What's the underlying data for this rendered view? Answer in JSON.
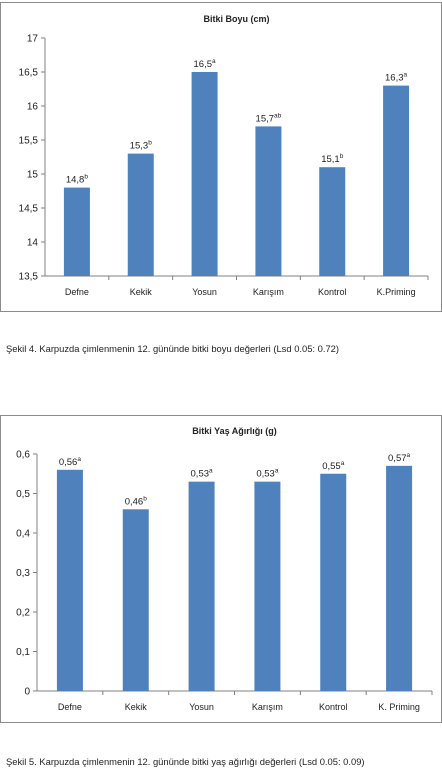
{
  "charts": [
    {
      "id": "chart1",
      "chart_data": {
        "type": "bar",
        "title": "Bitki Boyu (cm)",
        "categories": [
          "Defne",
          "Kekik",
          "Yosun",
          "Karışım",
          "Kontrol",
          "K.Priming"
        ],
        "values": [
          14.8,
          15.3,
          16.5,
          15.7,
          15.1,
          16.3
        ],
        "value_labels": [
          "14,8",
          "15,3",
          "16,5",
          "15,7",
          "15,1",
          "16,3"
        ],
        "letters": [
          "b",
          "b",
          "a",
          "ab",
          "b",
          "a"
        ],
        "ylim": [
          13.5,
          17
        ],
        "yticks": [
          "13,5",
          "14",
          "14,5",
          "15",
          "15,5",
          "16",
          "16,5",
          "17"
        ],
        "grid": false,
        "bar_color": "#4f81bd"
      },
      "caption": "Şekil 4. Karpuzda çimlenmenin 12. gününde bitki boyu değerleri (Lsd 0.05: 0.72)"
    },
    {
      "id": "chart2",
      "chart_data": {
        "type": "bar",
        "title": "Bitki Yaş Ağırlığı (g)",
        "categories": [
          "Defne",
          "Kekik",
          "Yosun",
          "Karışım",
          "Kontrol",
          "K. Priming"
        ],
        "values": [
          0.56,
          0.46,
          0.53,
          0.53,
          0.55,
          0.57
        ],
        "value_labels": [
          "0,56",
          "0,46",
          "0,53",
          "0,53",
          "0,55",
          "0,57"
        ],
        "letters": [
          "a",
          "b",
          "a",
          "a",
          "a",
          "a"
        ],
        "ylim": [
          0,
          0.6
        ],
        "yticks": [
          "0",
          "0,1",
          "0,2",
          "0,3",
          "0,4",
          "0,5",
          "0,6"
        ],
        "grid": false,
        "bar_color": "#4f81bd"
      },
      "caption": "Şekil 5. Karpuzda çimlenmenin 12. gününde bitki yaş ağırlığı değerleri (Lsd 0.05: 0.09)"
    }
  ]
}
